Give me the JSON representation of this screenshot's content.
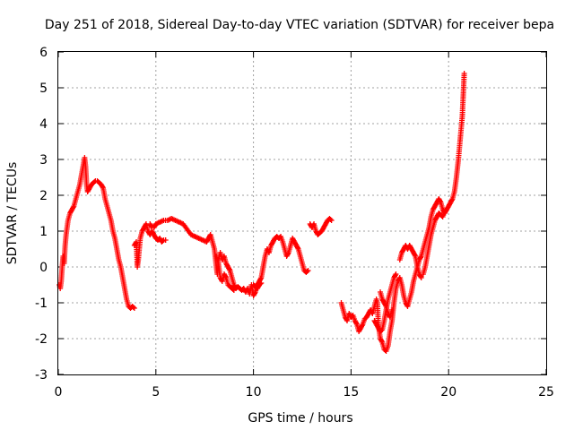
{
  "chart_data": {
    "type": "scatter",
    "title": "Day 251 of 2018, Sidereal Day-to-day VTEC variation (SDTVAR) for receiver bepa",
    "xlabel": "GPS time / hours",
    "ylabel": "SDTVAR / TECUs",
    "xlim": [
      0,
      25
    ],
    "ylim": [
      -3,
      6
    ],
    "xticks": [
      "0",
      "5",
      "10",
      "15",
      "20",
      "25"
    ],
    "yticks": [
      "-3",
      "-2",
      "-1",
      "0",
      "1",
      "2",
      "3",
      "4",
      "5",
      "6"
    ],
    "grid": true,
    "marker": "+",
    "color": "#ff0000",
    "series": [
      {
        "name": "SDTVAR",
        "segments": [
          [
            [
              0.05,
              -0.5
            ],
            [
              0.1,
              -0.6
            ],
            [
              0.15,
              -0.4
            ],
            [
              0.2,
              0.0
            ],
            [
              0.25,
              0.3
            ],
            [
              0.3,
              0.1
            ],
            [
              0.35,
              0.6
            ],
            [
              0.4,
              0.9
            ],
            [
              0.45,
              1.1
            ],
            [
              0.5,
              1.3
            ],
            [
              0.6,
              1.5
            ],
            [
              0.7,
              1.6
            ],
            [
              0.8,
              1.7
            ],
            [
              0.9,
              1.9
            ],
            [
              1.0,
              2.1
            ],
            [
              1.1,
              2.3
            ],
            [
              1.2,
              2.6
            ],
            [
              1.3,
              2.9
            ],
            [
              1.35,
              3.05
            ],
            [
              1.4,
              2.8
            ],
            [
              1.45,
              2.3
            ],
            [
              1.5,
              2.1
            ],
            [
              1.6,
              2.2
            ],
            [
              1.7,
              2.3
            ],
            [
              1.8,
              2.35
            ],
            [
              1.9,
              2.4
            ],
            [
              2.0,
              2.4
            ],
            [
              2.1,
              2.35
            ],
            [
              2.2,
              2.3
            ],
            [
              2.3,
              2.2
            ],
            [
              2.4,
              1.9
            ],
            [
              2.5,
              1.7
            ],
            [
              2.6,
              1.5
            ],
            [
              2.7,
              1.3
            ],
            [
              2.8,
              1.0
            ],
            [
              2.9,
              0.8
            ],
            [
              3.0,
              0.5
            ],
            [
              3.1,
              0.2
            ],
            [
              3.2,
              0.0
            ],
            [
              3.3,
              -0.3
            ],
            [
              3.4,
              -0.6
            ],
            [
              3.5,
              -0.9
            ],
            [
              3.6,
              -1.1
            ],
            [
              3.7,
              -1.15
            ],
            [
              3.8,
              -1.1
            ],
            [
              3.9,
              -1.15
            ]
          ],
          [
            [
              3.9,
              0.6
            ],
            [
              4.0,
              0.7
            ],
            [
              4.05,
              0.0
            ],
            [
              4.1,
              0.2
            ],
            [
              4.2,
              0.8
            ],
            [
              4.3,
              1.0
            ],
            [
              4.4,
              1.1
            ],
            [
              4.5,
              1.2
            ],
            [
              4.6,
              1.0
            ],
            [
              4.7,
              0.9
            ],
            [
              4.8,
              1.0
            ],
            [
              4.9,
              0.9
            ],
            [
              5.0,
              0.8
            ],
            [
              5.1,
              0.75
            ],
            [
              5.2,
              0.8
            ],
            [
              5.3,
              0.7
            ],
            [
              5.4,
              0.75
            ],
            [
              5.5,
              0.75
            ]
          ],
          [
            [
              4.7,
              1.2
            ],
            [
              4.8,
              1.1
            ],
            [
              4.9,
              1.1
            ],
            [
              5.0,
              1.2
            ],
            [
              5.2,
              1.25
            ],
            [
              5.4,
              1.3
            ],
            [
              5.6,
              1.3
            ],
            [
              5.8,
              1.35
            ],
            [
              6.0,
              1.3
            ],
            [
              6.2,
              1.25
            ],
            [
              6.4,
              1.2
            ],
            [
              6.6,
              1.05
            ],
            [
              6.8,
              0.9
            ],
            [
              7.0,
              0.85
            ],
            [
              7.2,
              0.8
            ],
            [
              7.4,
              0.75
            ],
            [
              7.6,
              0.7
            ],
            [
              7.7,
              0.8
            ],
            [
              7.8,
              0.9
            ],
            [
              7.9,
              0.7
            ],
            [
              8.0,
              0.5
            ],
            [
              8.1,
              0.0
            ],
            [
              8.15,
              -0.2
            ],
            [
              8.2,
              0.2
            ],
            [
              8.3,
              0.4
            ],
            [
              8.4,
              0.2
            ],
            [
              8.5,
              0.3
            ],
            [
              8.6,
              0.1
            ],
            [
              8.7,
              0.0
            ],
            [
              8.8,
              -0.1
            ],
            [
              8.9,
              -0.3
            ],
            [
              9.0,
              -0.5
            ],
            [
              9.1,
              -0.6
            ],
            [
              9.2,
              -0.55
            ],
            [
              9.3,
              -0.6
            ],
            [
              9.4,
              -0.65
            ],
            [
              9.5,
              -0.6
            ],
            [
              9.6,
              -0.7
            ],
            [
              9.7,
              -0.6
            ],
            [
              9.8,
              -0.75
            ],
            [
              9.9,
              -0.5
            ],
            [
              10.0,
              -0.8
            ],
            [
              10.1,
              -0.7
            ],
            [
              10.2,
              -0.5
            ],
            [
              10.3,
              -0.4
            ],
            [
              10.4,
              -0.3
            ],
            [
              10.5,
              0.0
            ],
            [
              10.6,
              0.3
            ],
            [
              10.7,
              0.5
            ],
            [
              10.8,
              0.4
            ],
            [
              10.9,
              0.6
            ],
            [
              11.0,
              0.7
            ],
            [
              11.1,
              0.8
            ],
            [
              11.2,
              0.85
            ],
            [
              11.3,
              0.8
            ],
            [
              11.4,
              0.85
            ],
            [
              11.5,
              0.7
            ],
            [
              11.6,
              0.5
            ],
            [
              11.7,
              0.3
            ],
            [
              11.8,
              0.4
            ],
            [
              11.9,
              0.6
            ],
            [
              12.0,
              0.8
            ],
            [
              12.1,
              0.7
            ],
            [
              12.2,
              0.6
            ],
            [
              12.3,
              0.5
            ],
            [
              12.4,
              0.3
            ],
            [
              12.5,
              0.1
            ],
            [
              12.6,
              -0.1
            ],
            [
              12.7,
              -0.15
            ],
            [
              12.8,
              -0.1
            ]
          ],
          [
            [
              8.1,
              0.3
            ],
            [
              8.2,
              0.1
            ],
            [
              8.3,
              -0.3
            ],
            [
              8.4,
              -0.4
            ],
            [
              8.5,
              -0.2
            ],
            [
              8.6,
              -0.3
            ],
            [
              8.7,
              -0.5
            ],
            [
              8.8,
              -0.55
            ],
            [
              8.9,
              -0.6
            ],
            [
              9.0,
              -0.65
            ]
          ],
          [
            [
              10.0,
              -0.5
            ],
            [
              10.1,
              -0.55
            ],
            [
              10.2,
              -0.6
            ],
            [
              10.3,
              -0.5
            ],
            [
              10.4,
              -0.45
            ]
          ],
          [
            [
              12.9,
              1.2
            ],
            [
              13.0,
              1.1
            ],
            [
              13.1,
              1.2
            ],
            [
              13.2,
              1.0
            ],
            [
              13.3,
              0.9
            ],
            [
              13.4,
              0.95
            ],
            [
              13.5,
              1.0
            ],
            [
              13.6,
              1.1
            ],
            [
              13.7,
              1.2
            ],
            [
              13.8,
              1.3
            ],
            [
              13.9,
              1.35
            ],
            [
              14.0,
              1.3
            ]
          ],
          [
            [
              14.5,
              -1.0
            ],
            [
              14.6,
              -1.2
            ],
            [
              14.7,
              -1.4
            ],
            [
              14.8,
              -1.5
            ],
            [
              14.9,
              -1.3
            ],
            [
              15.0,
              -1.4
            ],
            [
              15.1,
              -1.35
            ],
            [
              15.2,
              -1.5
            ],
            [
              15.3,
              -1.6
            ],
            [
              15.4,
              -1.8
            ],
            [
              15.5,
              -1.7
            ],
            [
              15.6,
              -1.6
            ],
            [
              15.7,
              -1.45
            ],
            [
              15.8,
              -1.4
            ],
            [
              15.9,
              -1.3
            ],
            [
              16.0,
              -1.2
            ],
            [
              16.1,
              -1.3
            ],
            [
              16.2,
              -1.1
            ],
            [
              16.3,
              -0.9
            ],
            [
              16.35,
              -1.0
            ],
            [
              16.4,
              -1.6
            ],
            [
              16.5,
              -2.0
            ],
            [
              16.6,
              -2.1
            ],
            [
              16.7,
              -2.3
            ],
            [
              16.8,
              -2.35
            ],
            [
              16.9,
              -2.2
            ],
            [
              17.0,
              -1.8
            ],
            [
              17.1,
              -1.5
            ],
            [
              17.2,
              -1.0
            ],
            [
              17.3,
              -0.6
            ],
            [
              17.4,
              -0.4
            ],
            [
              17.5,
              -0.3
            ],
            [
              17.6,
              -0.5
            ],
            [
              17.7,
              -0.8
            ],
            [
              17.8,
              -1.0
            ],
            [
              17.9,
              -1.1
            ],
            [
              18.0,
              -0.9
            ],
            [
              18.1,
              -0.7
            ],
            [
              18.2,
              -0.4
            ],
            [
              18.3,
              -0.2
            ],
            [
              18.4,
              0.0
            ],
            [
              18.5,
              0.2
            ],
            [
              18.6,
              0.3
            ],
            [
              18.7,
              0.5
            ],
            [
              18.8,
              0.7
            ],
            [
              18.9,
              0.9
            ],
            [
              19.0,
              1.1
            ],
            [
              19.1,
              1.4
            ],
            [
              19.2,
              1.6
            ],
            [
              19.3,
              1.7
            ],
            [
              19.4,
              1.8
            ],
            [
              19.5,
              1.9
            ],
            [
              19.6,
              1.8
            ],
            [
              19.7,
              1.6
            ],
            [
              19.8,
              1.5
            ],
            [
              19.9,
              1.6
            ],
            [
              20.0,
              1.7
            ],
            [
              20.1,
              1.8
            ],
            [
              20.2,
              1.9
            ],
            [
              20.3,
              2.1
            ],
            [
              20.4,
              2.5
            ],
            [
              20.5,
              3.0
            ],
            [
              20.6,
              3.6
            ],
            [
              20.7,
              4.2
            ],
            [
              20.75,
              4.8
            ],
            [
              20.8,
              5.4
            ]
          ],
          [
            [
              16.2,
              -1.5
            ],
            [
              16.3,
              -1.6
            ],
            [
              16.4,
              -1.7
            ],
            [
              16.5,
              -1.8
            ],
            [
              16.6,
              -1.75
            ],
            [
              16.7,
              -1.5
            ],
            [
              16.8,
              -1.2
            ],
            [
              16.9,
              -0.9
            ],
            [
              17.0,
              -0.7
            ],
            [
              17.1,
              -0.5
            ],
            [
              17.2,
              -0.3
            ],
            [
              17.3,
              -0.2
            ]
          ],
          [
            [
              17.5,
              0.2
            ],
            [
              17.6,
              0.4
            ],
            [
              17.7,
              0.5
            ],
            [
              17.8,
              0.6
            ],
            [
              17.9,
              0.5
            ],
            [
              18.0,
              0.6
            ],
            [
              18.1,
              0.5
            ],
            [
              18.2,
              0.4
            ],
            [
              18.3,
              0.3
            ],
            [
              18.4,
              0.0
            ],
            [
              18.5,
              -0.2
            ],
            [
              18.6,
              -0.3
            ]
          ],
          [
            [
              18.7,
              -0.2
            ],
            [
              18.8,
              0.0
            ],
            [
              18.9,
              0.3
            ],
            [
              19.0,
              0.6
            ],
            [
              19.1,
              0.9
            ],
            [
              19.2,
              1.1
            ],
            [
              19.3,
              1.3
            ],
            [
              19.4,
              1.4
            ],
            [
              19.5,
              1.5
            ],
            [
              19.6,
              1.45
            ],
            [
              19.7,
              1.4
            ],
            [
              19.8,
              1.55
            ]
          ],
          [
            [
              16.5,
              -0.7
            ],
            [
              16.6,
              -0.9
            ],
            [
              16.7,
              -1.0
            ],
            [
              16.8,
              -1.1
            ],
            [
              16.9,
              -1.3
            ],
            [
              17.0,
              -1.4
            ],
            [
              17.1,
              -1.2
            ]
          ]
        ]
      }
    ]
  }
}
